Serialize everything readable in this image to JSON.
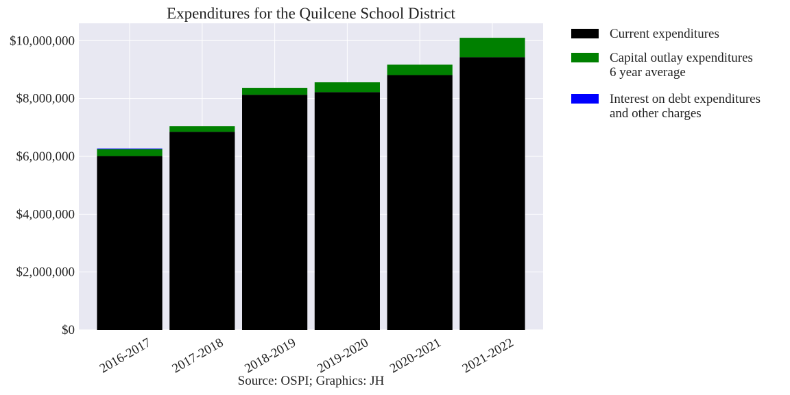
{
  "chart_data": {
    "type": "bar",
    "stacked": true,
    "title": "Expenditures for the Quilcene School District",
    "categories": [
      "2016-2017",
      "2017-2018",
      "2018-2019",
      "2019-2020",
      "2020-2021",
      "2021-2022"
    ],
    "series": [
      {
        "name": "Current expenditures",
        "color": "#000000",
        "values": [
          6010000,
          6850000,
          8130000,
          8220000,
          8810000,
          9430000
        ]
      },
      {
        "name": "Capital outlay expenditures\n6 year average",
        "color": "#008000",
        "values": [
          240000,
          190000,
          240000,
          340000,
          360000,
          670000
        ]
      },
      {
        "name": "Interest on debt expenditures\nand other charges",
        "color": "#0000ff",
        "values": [
          20000,
          0,
          0,
          0,
          0,
          0
        ]
      }
    ],
    "ylim": [
      0,
      10600000
    ],
    "yticks": [
      0,
      2000000,
      4000000,
      6000000,
      8000000,
      10000000
    ],
    "ytick_labels": [
      "$0",
      "$2,000,000",
      "$4,000,000",
      "$6,000,000",
      "$8,000,000",
      "$10,000,000"
    ],
    "xlabel": "",
    "ylabel": "",
    "grid": true,
    "legend_position": "outside-right-top",
    "source": "Source: OSPI; Graphics: JH",
    "colors": {
      "plot_background": "#e8e8f2",
      "grid": "#ffffff"
    }
  }
}
